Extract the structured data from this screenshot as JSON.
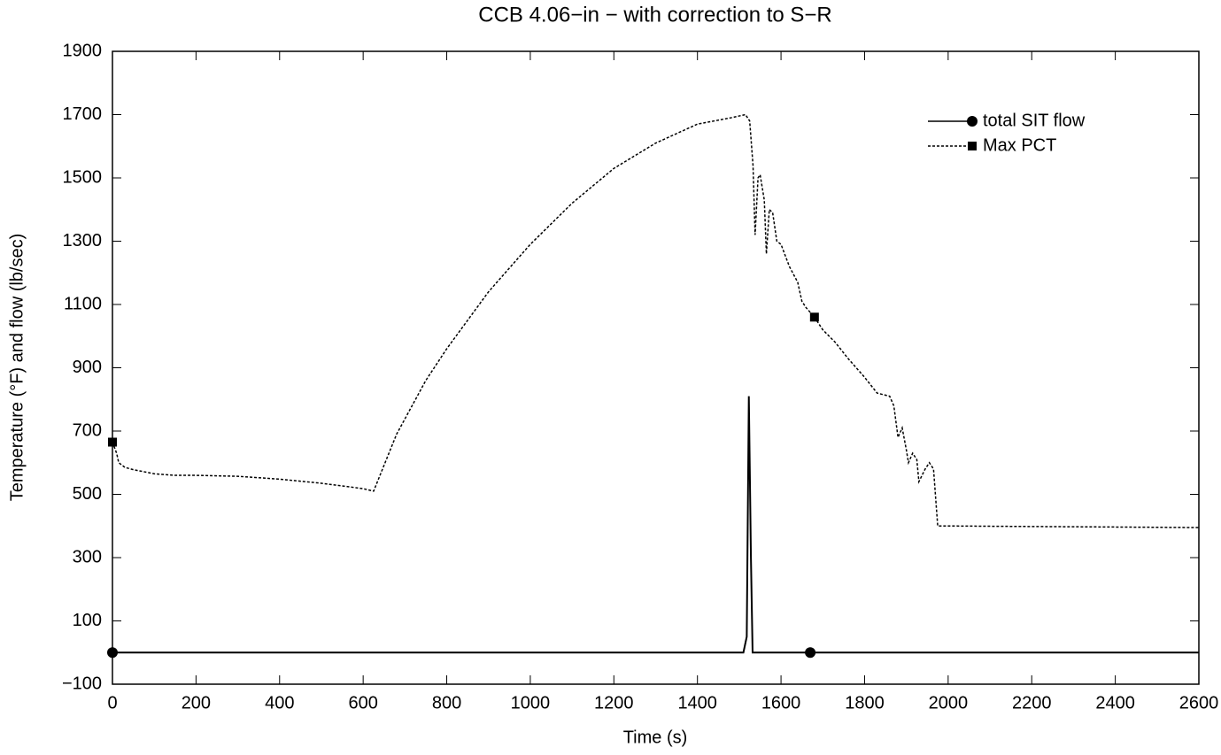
{
  "chart_data": {
    "type": "line",
    "title": "CCB 4.06−in − with correction to S−R",
    "xlabel": "Time (s)",
    "ylabel": "Temperature (°F) and flow (lb/sec)",
    "xlim": [
      0,
      2600
    ],
    "xticks": [
      0,
      200,
      400,
      600,
      800,
      1000,
      1200,
      1400,
      1600,
      1800,
      2000,
      2200,
      2400,
      2600
    ],
    "ylim": [
      -100,
      1900
    ],
    "yticks": [
      {
        "value": -100,
        "label": "−100"
      },
      100,
      300,
      500,
      700,
      900,
      1100,
      1300,
      1500,
      1700,
      1900
    ],
    "legend": "upper right",
    "series": [
      {
        "name": "total SIT flow",
        "color": "#000000",
        "style": "solid",
        "marker": "circle",
        "x": [
          0,
          1510,
          1518,
          1523,
          1528,
          1532,
          1670,
          2600
        ],
        "values": [
          0,
          0,
          50,
          810,
          300,
          0,
          0,
          0
        ]
      },
      {
        "name": "Max PCT",
        "color": "#000000",
        "style": "dotted",
        "marker": "square",
        "x": [
          0,
          10,
          15,
          30,
          50,
          100,
          150,
          200,
          300,
          400,
          500,
          600,
          625,
          680,
          750,
          800,
          900,
          1000,
          1100,
          1200,
          1300,
          1400,
          1480,
          1515,
          1525,
          1533,
          1538,
          1545,
          1550,
          1560,
          1565,
          1572,
          1580,
          1590,
          1600,
          1620,
          1640,
          1650,
          1660,
          1680,
          1700,
          1730,
          1760,
          1800,
          1830,
          1860,
          1870,
          1880,
          1890,
          1900,
          1905,
          1915,
          1925,
          1930,
          1945,
          1955,
          1965,
          1975,
          2000,
          2600
        ],
        "values": [
          665,
          630,
          600,
          585,
          578,
          565,
          560,
          560,
          557,
          548,
          535,
          518,
          510,
          690,
          860,
          960,
          1140,
          1290,
          1420,
          1530,
          1610,
          1670,
          1690,
          1700,
          1680,
          1540,
          1320,
          1500,
          1510,
          1430,
          1260,
          1400,
          1390,
          1300,
          1290,
          1220,
          1170,
          1110,
          1090,
          1060,
          1020,
          980,
          930,
          870,
          820,
          810,
          780,
          680,
          710,
          640,
          600,
          630,
          610,
          540,
          580,
          600,
          580,
          400,
          400,
          395
        ]
      }
    ]
  }
}
